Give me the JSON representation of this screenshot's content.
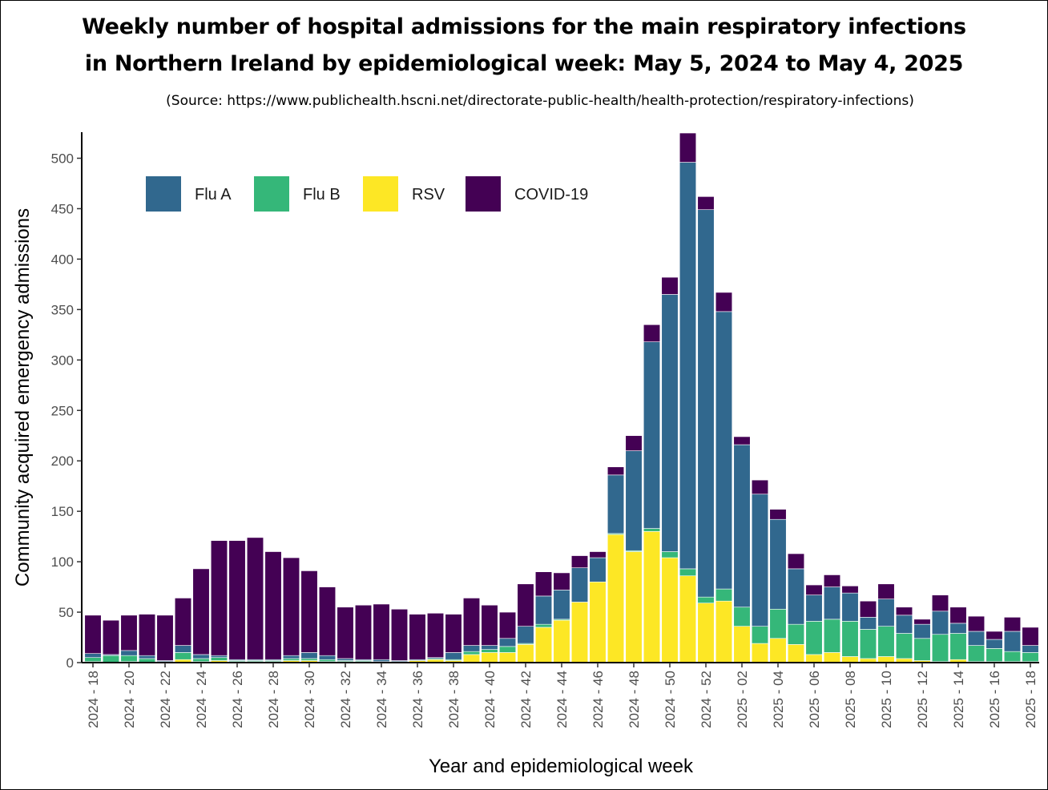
{
  "title_line1": "Weekly number of hospital admissions for the main respiratory infections",
  "title_line2": "in Northern Ireland by epidemiological week: May 5, 2024 to May 4, 2025",
  "source": "(Source: https://www.publichealth.hscni.net/directorate-public-health/health-protection/respiratory-infections)",
  "chart_data": {
    "type": "bar",
    "stacked": true,
    "xlabel": "Year and epidemiological week",
    "ylabel": "Community acquired emergency admissions",
    "ylim": [
      0,
      525
    ],
    "yticks": [
      0,
      50,
      100,
      150,
      200,
      250,
      300,
      350,
      400,
      450,
      500
    ],
    "legend_position": "top-left",
    "grid": false,
    "categories": [
      "2024 - 18",
      "2024 - 19",
      "2024 - 20",
      "2024 - 21",
      "2024 - 22",
      "2024 - 23",
      "2024 - 24",
      "2024 - 25",
      "2024 - 26",
      "2024 - 27",
      "2024 - 28",
      "2024 - 29",
      "2024 - 30",
      "2024 - 31",
      "2024 - 32",
      "2024 - 33",
      "2024 - 34",
      "2024 - 35",
      "2024 - 36",
      "2024 - 37",
      "2024 - 38",
      "2024 - 39",
      "2024 - 40",
      "2024 - 41",
      "2024 - 42",
      "2024 - 43",
      "2024 - 44",
      "2024 - 45",
      "2024 - 46",
      "2024 - 47",
      "2024 - 48",
      "2024 - 49",
      "2024 - 50",
      "2024 - 51",
      "2024 - 52",
      "2025 - 01",
      "2025 - 02",
      "2025 - 03",
      "2025 - 04",
      "2025 - 05",
      "2025 - 06",
      "2025 - 07",
      "2025 - 08",
      "2025 - 09",
      "2025 - 10",
      "2025 - 11",
      "2025 - 12",
      "2025 - 13",
      "2025 - 14",
      "2025 - 15",
      "2025 - 16",
      "2025 - 17",
      "2025 - 18"
    ],
    "tick_labels": [
      "2024 - 18",
      "2024 - 20",
      "2024 - 22",
      "2024 - 24",
      "2024 - 26",
      "2024 - 28",
      "2024 - 30",
      "2024 - 32",
      "2024 - 34",
      "2024 - 36",
      "2024 - 38",
      "2024 - 40",
      "2024 - 42",
      "2024 - 44",
      "2024 - 46",
      "2024 - 48",
      "2024 - 50",
      "2024 - 52",
      "2025 - 02",
      "2025 - 04",
      "2025 - 06",
      "2025 - 08",
      "2025 - 10",
      "2025 - 12",
      "2025 - 14",
      "2025 - 16",
      "2025 - 18"
    ],
    "series": [
      {
        "name": "RSV",
        "color": "#FDE725",
        "values": [
          1,
          0,
          1,
          0,
          0,
          3,
          1,
          2,
          1,
          1,
          1,
          2,
          2,
          1,
          1,
          1,
          0,
          1,
          2,
          3,
          2,
          8,
          10,
          10,
          18,
          35,
          42,
          60,
          80,
          127,
          110,
          130,
          104,
          86,
          59,
          61,
          36,
          19,
          24,
          18,
          8,
          10,
          6,
          4,
          6,
          4,
          2,
          1,
          3,
          1,
          1,
          1,
          1
        ]
      },
      {
        "name": "Flu B",
        "color": "#35B779",
        "values": [
          4,
          7,
          6,
          4,
          1,
          7,
          3,
          3,
          1,
          1,
          1,
          2,
          2,
          2,
          1,
          1,
          1,
          0,
          0,
          1,
          1,
          3,
          3,
          6,
          1,
          3,
          1,
          0,
          0,
          1,
          1,
          3,
          6,
          7,
          6,
          12,
          19,
          17,
          29,
          20,
          33,
          33,
          35,
          29,
          30,
          25,
          22,
          27,
          26,
          16,
          13,
          10,
          9
        ]
      },
      {
        "name": "Flu A",
        "color": "#31688E",
        "values": [
          4,
          1,
          5,
          3,
          1,
          7,
          4,
          2,
          1,
          1,
          1,
          3,
          6,
          4,
          2,
          1,
          2,
          1,
          1,
          1,
          7,
          6,
          4,
          8,
          17,
          28,
          29,
          34,
          24,
          58,
          99,
          185,
          255,
          403,
          384,
          275,
          161,
          131,
          89,
          55,
          26,
          32,
          28,
          12,
          27,
          18,
          14,
          23,
          10,
          14,
          9,
          20,
          7
        ]
      },
      {
        "name": "COVID-19",
        "color": "#440154",
        "values": [
          38,
          34,
          35,
          41,
          45,
          47,
          85,
          114,
          118,
          121,
          107,
          97,
          81,
          68,
          51,
          54,
          55,
          51,
          45,
          44,
          38,
          47,
          40,
          26,
          42,
          24,
          17,
          12,
          6,
          8,
          15,
          17,
          17,
          29,
          13,
          19,
          8,
          14,
          10,
          15,
          10,
          12,
          7,
          16,
          15,
          8,
          5,
          16,
          16,
          15,
          8,
          14,
          18
        ]
      }
    ]
  }
}
